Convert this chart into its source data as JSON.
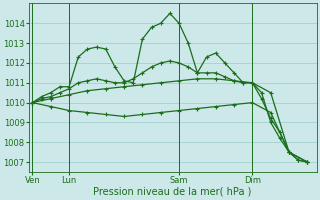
{
  "bg_color": "#cce8e8",
  "grid_color": "#99cccc",
  "line_color": "#1a6e1a",
  "marker": "+",
  "markersize": 3,
  "linewidth": 0.9,
  "markeredgewidth": 0.8,
  "ylim": [
    1006.5,
    1015.0
  ],
  "yticks": [
    1007,
    1008,
    1009,
    1010,
    1011,
    1012,
    1013,
    1014
  ],
  "xlabel": "Pression niveau de la mer( hPa )",
  "tick_fontsize": 6,
  "xlabel_fontsize": 7,
  "xtick_labels": [
    "Ven",
    "Lun",
    "Sam",
    "Dim"
  ],
  "xtick_positions": [
    0,
    2,
    8,
    12
  ],
  "vlines": [
    0,
    2,
    8,
    12
  ],
  "xlim": [
    -0.2,
    15.5
  ],
  "line1_x": [
    0,
    0.5,
    1,
    1.5,
    2,
    2.5,
    3,
    3.5,
    4,
    4.5,
    5,
    5.5,
    6,
    6.5,
    7,
    7.5,
    8,
    8.5,
    9,
    9.5,
    10,
    10.5,
    11,
    11.5,
    12,
    12.5,
    13,
    13.5,
    14,
    14.5,
    15
  ],
  "line1_y": [
    1010.0,
    1010.3,
    1010.5,
    1010.8,
    1010.8,
    1012.3,
    1012.7,
    1012.8,
    1012.7,
    1011.8,
    1011.1,
    1011.0,
    1013.2,
    1013.8,
    1014.0,
    1014.5,
    1014.0,
    1013.0,
    1011.5,
    1012.3,
    1012.5,
    1012.0,
    1011.5,
    1011.0,
    1011.0,
    1010.5,
    1009.0,
    1008.2,
    1007.5,
    1007.1,
    1007.0
  ],
  "line2_x": [
    0,
    0.5,
    1,
    1.5,
    2,
    2.5,
    3,
    3.5,
    4,
    4.5,
    5,
    5.5,
    6,
    6.5,
    7,
    7.5,
    8,
    8.5,
    9,
    9.5,
    10,
    10.5,
    11,
    11.5,
    12,
    12.5,
    13,
    13.5,
    14,
    14.5,
    15
  ],
  "line2_y": [
    1010.0,
    1010.2,
    1010.3,
    1010.5,
    1010.7,
    1011.0,
    1011.1,
    1011.2,
    1011.1,
    1011.0,
    1011.0,
    1011.2,
    1011.5,
    1011.8,
    1012.0,
    1012.1,
    1012.0,
    1011.8,
    1011.5,
    1011.5,
    1011.5,
    1011.3,
    1011.1,
    1011.0,
    1011.0,
    1010.2,
    1009.2,
    1008.5,
    1007.5,
    1007.1,
    1007.0
  ],
  "line3_x": [
    0,
    1,
    2,
    3,
    4,
    5,
    6,
    7,
    8,
    9,
    10,
    11,
    12,
    13,
    14,
    15
  ],
  "line3_y": [
    1010.0,
    1010.2,
    1010.4,
    1010.6,
    1010.7,
    1010.8,
    1010.9,
    1011.0,
    1011.1,
    1011.2,
    1011.2,
    1011.1,
    1011.0,
    1010.5,
    1007.5,
    1007.0
  ],
  "line4_x": [
    0,
    1,
    2,
    3,
    4,
    5,
    6,
    7,
    8,
    9,
    10,
    11,
    12,
    13,
    14,
    15
  ],
  "line4_y": [
    1010.0,
    1009.8,
    1009.6,
    1009.5,
    1009.4,
    1009.3,
    1009.4,
    1009.5,
    1009.6,
    1009.7,
    1009.8,
    1009.9,
    1010.0,
    1009.5,
    1007.5,
    1007.0
  ]
}
